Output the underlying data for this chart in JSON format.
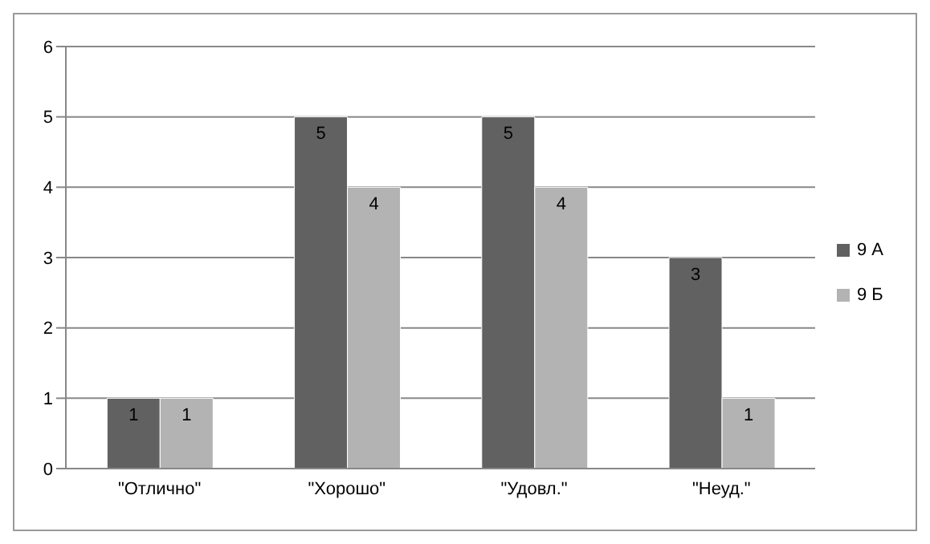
{
  "chart_data": {
    "type": "bar",
    "categories": [
      "\"Отлично\"",
      "\"Хорошо\"",
      "\"Удовл.\"",
      "\"Неуд.\""
    ],
    "series": [
      {
        "name": "9 А",
        "color": "#616161",
        "values": [
          1,
          5,
          5,
          3
        ]
      },
      {
        "name": "9 Б",
        "color": "#b3b3b3",
        "values": [
          1,
          4,
          4,
          1
        ]
      }
    ],
    "ylim": [
      0,
      6
    ],
    "yticks": [
      0,
      1,
      2,
      3,
      4,
      5,
      6
    ],
    "grid": "y",
    "legend": "right",
    "data_labels": true
  }
}
